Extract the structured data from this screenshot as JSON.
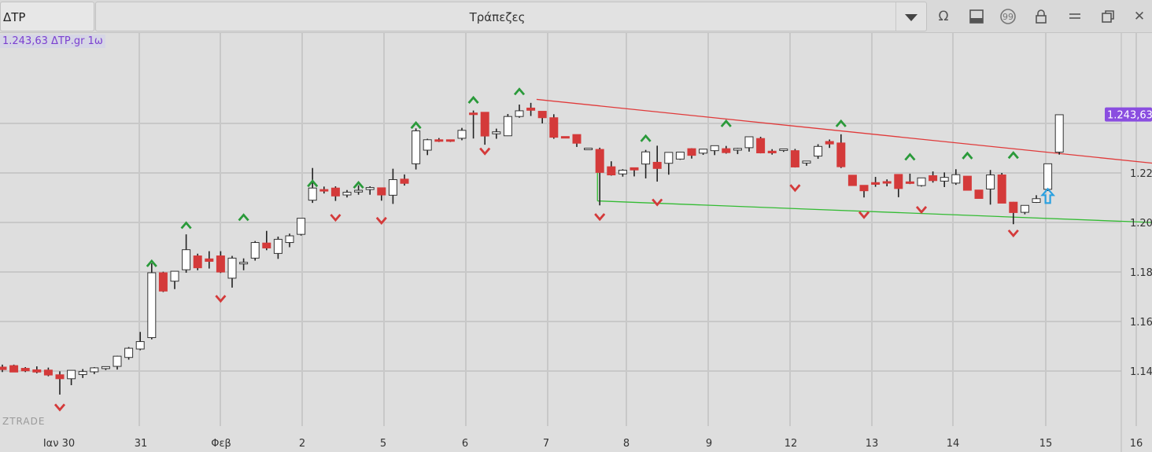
{
  "header": {
    "symbol": "ΔΤΡ",
    "title": "Τράπεζες"
  },
  "legend": "1.243,63 ΔΤΡ.gr 1ω",
  "colors": {
    "up": "#ffffff",
    "down": "#d43a3a",
    "accent": "#8a4ee0",
    "resistance": "#e03a3a",
    "support": "#33bb33"
  },
  "chart_data": {
    "type": "candlestick",
    "symbol": "ΔΤΡ.gr",
    "timeframe": "1ω",
    "last_price": "1.243,63",
    "watermark": "ZTRADE",
    "x_labels": [
      "Ιαν 30",
      "31",
      "Φεβ",
      "2",
      "5",
      "6",
      "7",
      "8",
      "9",
      "12",
      "13",
      "14",
      "15",
      "16"
    ],
    "y_ticks": [
      "1.140",
      "1.160",
      "1.180",
      "1.200",
      "1.220"
    ],
    "y_tick_values": [
      1.14,
      1.16,
      1.18,
      1.2,
      1.22
    ],
    "ylim": [
      1.1216,
      1.2619
    ],
    "candles": [
      [
        1.1416,
        1.1426,
        1.1406,
        1.1396
      ],
      [
        1.1422,
        1.1426,
        1.1396,
        1.1396
      ],
      [
        1.1411,
        1.1416,
        1.1401,
        1.1396
      ],
      [
        1.1405,
        1.1419,
        1.1396,
        1.1391
      ],
      [
        1.1404,
        1.1414,
        1.1384,
        1.1379
      ],
      [
        1.1385,
        1.1399,
        1.1369,
        1.1305
      ],
      [
        1.1369,
        1.1403,
        1.1403,
        1.1343
      ],
      [
        1.1386,
        1.1408,
        1.1398,
        1.1372
      ],
      [
        1.1397,
        1.1416,
        1.1413,
        1.1388
      ],
      [
        1.141,
        1.1419,
        1.1418,
        1.1404
      ],
      [
        1.1419,
        1.1462,
        1.146,
        1.1406
      ],
      [
        1.1455,
        1.1497,
        1.1492,
        1.1446
      ],
      [
        1.1489,
        1.1558,
        1.1519,
        1.1484
      ],
      [
        1.1535,
        1.1835,
        1.1797,
        1.1528
      ],
      [
        1.1797,
        1.1801,
        1.1723,
        1.1719
      ],
      [
        1.1763,
        1.1803,
        1.1803,
        1.1731
      ],
      [
        1.1809,
        1.1952,
        1.189,
        1.1797
      ],
      [
        1.1865,
        1.1874,
        1.1817,
        1.1807
      ],
      [
        1.1853,
        1.1884,
        1.1843,
        1.1814
      ],
      [
        1.1865,
        1.1884,
        1.18,
        1.1796
      ],
      [
        1.1775,
        1.1865,
        1.1856,
        1.1737
      ],
      [
        1.1836,
        1.1855,
        1.1839,
        1.1807
      ],
      [
        1.1856,
        1.1925,
        1.1919,
        1.1846
      ],
      [
        1.1917,
        1.1966,
        1.1897,
        1.1888
      ],
      [
        1.1875,
        1.1943,
        1.1932,
        1.1853
      ],
      [
        1.1919,
        1.1955,
        1.1946,
        1.19
      ],
      [
        1.1952,
        1.2015,
        1.2017,
        1.1947
      ],
      [
        1.209,
        1.222,
        1.2139,
        1.2079
      ],
      [
        1.2133,
        1.2145,
        1.2127,
        1.2117
      ],
      [
        1.2139,
        1.2146,
        1.2107,
        1.2087
      ],
      [
        1.2111,
        1.2131,
        1.2122,
        1.2101
      ],
      [
        1.2123,
        1.215,
        1.213,
        1.2112
      ],
      [
        1.2133,
        1.2146,
        1.2141,
        1.2112
      ],
      [
        1.214,
        1.2141,
        1.2111,
        1.2088
      ],
      [
        1.211,
        1.2217,
        1.2173,
        1.2075
      ],
      [
        1.2175,
        1.2194,
        1.2158,
        1.2149
      ],
      [
        1.2237,
        1.238,
        1.237,
        1.2214
      ],
      [
        1.2292,
        1.2338,
        1.2334,
        1.2272
      ],
      [
        1.2334,
        1.2341,
        1.2331,
        1.2325
      ],
      [
        1.2334,
        1.2334,
        1.2328,
        1.2325
      ],
      [
        1.234,
        1.2382,
        1.2372,
        1.2332
      ],
      [
        1.2442,
        1.2452,
        1.2441,
        1.2339
      ],
      [
        1.2445,
        1.2445,
        1.2349,
        1.2314
      ],
      [
        1.2358,
        1.2379,
        1.2366,
        1.2338
      ],
      [
        1.235,
        1.2438,
        1.2428,
        1.2349
      ],
      [
        1.2428,
        1.2476,
        1.2451,
        1.2423
      ],
      [
        1.2462,
        1.2483,
        1.2453,
        1.243
      ],
      [
        1.2449,
        1.2449,
        1.2423,
        1.24
      ],
      [
        1.2423,
        1.2437,
        1.2344,
        1.2338
      ],
      [
        1.2347,
        1.2347,
        1.2346,
        1.2346
      ],
      [
        1.2355,
        1.2355,
        1.232,
        1.2305
      ],
      [
        1.23,
        1.23,
        1.23,
        1.23
      ],
      [
        1.2295,
        1.2302,
        1.2202,
        1.2069
      ],
      [
        1.2225,
        1.2247,
        1.2192,
        1.2189
      ],
      [
        1.2196,
        1.2215,
        1.2211,
        1.2185
      ],
      [
        1.2221,
        1.2222,
        1.2212,
        1.2186
      ],
      [
        1.2236,
        1.2293,
        1.2285,
        1.2178
      ],
      [
        1.2243,
        1.231,
        1.2218,
        1.2165
      ],
      [
        1.2239,
        1.2273,
        1.2283,
        1.2193
      ],
      [
        1.2256,
        1.2284,
        1.2284,
        1.2253
      ],
      [
        1.2298,
        1.23,
        1.2271,
        1.2258
      ],
      [
        1.228,
        1.2297,
        1.2296,
        1.2273
      ],
      [
        1.229,
        1.2302,
        1.231,
        1.2272
      ],
      [
        1.2298,
        1.2309,
        1.2282,
        1.2278
      ],
      [
        1.2292,
        1.2301,
        1.2299,
        1.2276
      ],
      [
        1.2302,
        1.2338,
        1.2346,
        1.2286
      ],
      [
        1.2339,
        1.2346,
        1.2281,
        1.2279
      ],
      [
        1.2288,
        1.2296,
        1.2281,
        1.2274
      ],
      [
        1.2295,
        1.2295,
        1.2297,
        1.2285
      ],
      [
        1.229,
        1.2297,
        1.2224,
        1.2222
      ],
      [
        1.224,
        1.2246,
        1.2248,
        1.2229
      ],
      [
        1.2268,
        1.2316,
        1.2307,
        1.2257
      ],
      [
        1.2327,
        1.2335,
        1.2317,
        1.2301
      ],
      [
        1.2321,
        1.2356,
        1.2225,
        1.222
      ],
      [
        1.2191,
        1.2191,
        1.2149,
        1.2149
      ],
      [
        1.215,
        1.215,
        1.2128,
        1.2101
      ],
      [
        1.2161,
        1.2184,
        1.2154,
        1.2144
      ],
      [
        1.2165,
        1.2174,
        1.2159,
        1.2146
      ],
      [
        1.2194,
        1.2193,
        1.2137,
        1.2102
      ],
      [
        1.2164,
        1.2197,
        1.2162,
        1.2155
      ],
      [
        1.2149,
        1.2145,
        1.218,
        1.2157
      ],
      [
        1.2189,
        1.2206,
        1.2169,
        1.2161
      ],
      [
        1.2167,
        1.2202,
        1.2182,
        1.2143
      ],
      [
        1.2159,
        1.2215,
        1.2193,
        1.2152
      ],
      [
        1.2187,
        1.2187,
        1.213,
        1.2134
      ],
      [
        1.2131,
        1.2119,
        1.2097,
        1.2097
      ],
      [
        1.2135,
        1.2212,
        1.2192,
        1.2072
      ],
      [
        1.2192,
        1.22,
        1.2078,
        1.2083
      ],
      [
        1.2082,
        1.2083,
        1.204,
        1.1993
      ],
      [
        1.2041,
        1.2066,
        1.2069,
        1.2033
      ],
      [
        1.2081,
        1.211,
        1.2096,
        1.2079
      ],
      [
        1.2134,
        1.2232,
        1.2237,
        1.2127
      ],
      [
        1.2284,
        1.2435,
        1.2435,
        1.2274
      ]
    ],
    "markers_up": [
      [
        1.1835,
        13
      ],
      [
        1.1989,
        16
      ],
      [
        1.2021,
        21
      ],
      [
        1.2158,
        27
      ],
      [
        1.2152,
        31
      ],
      [
        1.2393,
        36
      ],
      [
        1.2495,
        41
      ],
      [
        1.2529,
        45
      ],
      [
        1.234,
        56
      ],
      [
        1.24,
        63
      ],
      [
        1.24,
        73
      ],
      [
        1.2265,
        79
      ],
      [
        1.227,
        84
      ],
      [
        1.2272,
        88
      ]
    ],
    "markers_down": [
      [
        1.1253,
        5
      ],
      [
        1.1692,
        19
      ],
      [
        1.2019,
        29
      ],
      [
        1.2007,
        33
      ],
      [
        1.2287,
        42
      ],
      [
        1.2022,
        52
      ],
      [
        1.2081,
        57
      ],
      [
        1.2139,
        69
      ],
      [
        1.203,
        75
      ],
      [
        1.2051,
        80
      ],
      [
        1.1956,
        88
      ]
    ],
    "trendlines": [
      {
        "name": "resistance",
        "from": [
          46.5,
          1.2497
        ],
        "to": [
          115,
          1.2168
        ]
      },
      {
        "name": "support",
        "from": [
          51.8,
          1.2087
        ],
        "to": [
          115,
          1.1973
        ]
      }
    ],
    "buy_signal": [
      1.2107,
      91
    ]
  }
}
